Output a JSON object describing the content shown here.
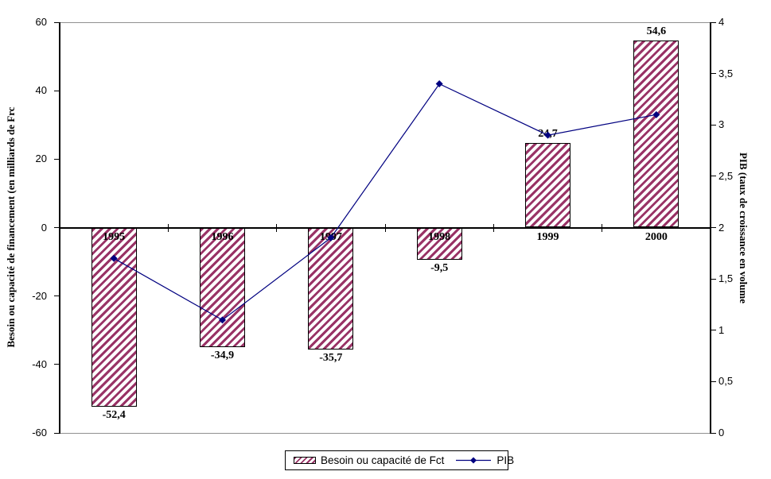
{
  "chart_data": {
    "type": "bar+line combo",
    "categories": [
      "1995",
      "1996",
      "1997",
      "1998",
      "1999",
      "2000"
    ],
    "series": [
      {
        "name": "Besoin ou capacité de Fct",
        "type": "bar",
        "axis": "left",
        "values": [
          -52.4,
          -34.9,
          -35.7,
          -9.5,
          24.7,
          54.6
        ],
        "data_labels": [
          "-52,4",
          "-34,9",
          "-35,7",
          "-9,5",
          "24,7",
          "54,6"
        ]
      },
      {
        "name": "PIB",
        "type": "line",
        "axis": "right",
        "marker": "diamond",
        "values": [
          1.7,
          1.1,
          1.9,
          3.4,
          2.9,
          3.1
        ]
      }
    ],
    "left_axis": {
      "title": "Besoin ou capacité de financement (en milliards de Frc",
      "min": -60,
      "max": 60,
      "tick_step": 20,
      "tick_labels": [
        "60",
        "40",
        "20",
        "0",
        "-20",
        "-40",
        "-60"
      ]
    },
    "right_axis": {
      "title": "PIB (taux de croissance en volume",
      "min": 0,
      "max": 4,
      "tick_step": 0.5,
      "tick_labels": [
        "4",
        "3,5",
        "3",
        "2,5",
        "2",
        "1,5",
        "1",
        "0,5",
        "0"
      ]
    },
    "legend": {
      "position": "bottom",
      "items": [
        {
          "label": "Besoin ou capacité de Fct",
          "swatch": "hatched-bar"
        },
        {
          "label": "PIB",
          "swatch": "line-diamond"
        }
      ]
    },
    "grid": "off",
    "background": "#ffffff"
  },
  "colors": {
    "bar_hatch": "#993366",
    "bar_border": "#000000",
    "line": "#000080",
    "plot_border": "#909090",
    "axis": "#000000",
    "text": "#000000"
  }
}
